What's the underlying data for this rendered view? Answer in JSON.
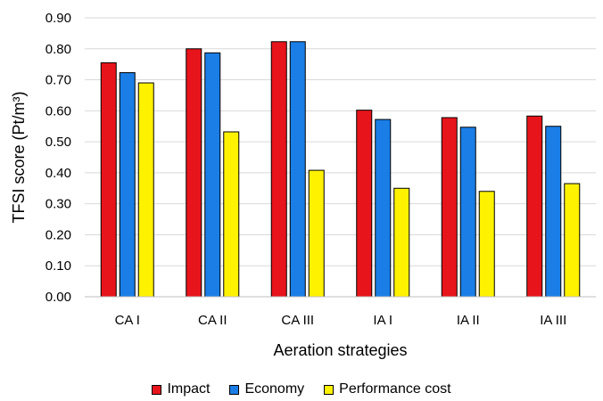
{
  "chart_data": {
    "type": "bar",
    "categories": [
      "CA I",
      "CA II",
      "CA III",
      "IA I",
      "IA II",
      "IA III"
    ],
    "series": [
      {
        "name": "Impact",
        "color": "#e8141b",
        "values": [
          0.755,
          0.8,
          0.823,
          0.602,
          0.578,
          0.583
        ]
      },
      {
        "name": "Economy",
        "color": "#1a7ee6",
        "values": [
          0.723,
          0.787,
          0.823,
          0.572,
          0.547,
          0.55
        ]
      },
      {
        "name": "Performance cost",
        "color": "#fff200",
        "values": [
          0.69,
          0.532,
          0.408,
          0.35,
          0.34,
          0.365
        ]
      }
    ],
    "xlabel": "Aeration strategies",
    "ylabel": "TFSI score (Pt/m³)",
    "ylim": [
      0,
      0.9
    ],
    "yticks": [
      "0.00",
      "0.10",
      "0.20",
      "0.30",
      "0.40",
      "0.50",
      "0.60",
      "0.70",
      "0.80",
      "0.90"
    ],
    "grid": true,
    "legend": "bottom"
  }
}
